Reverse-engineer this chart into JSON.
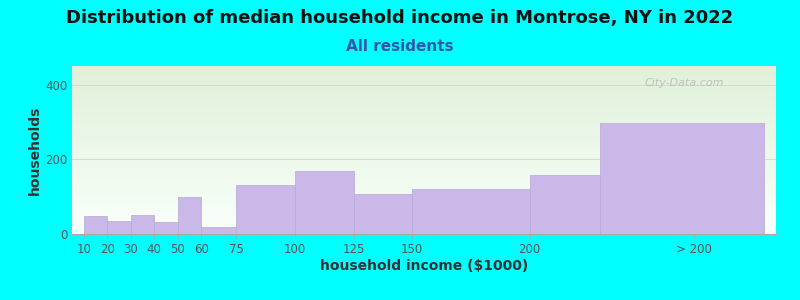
{
  "title": "Distribution of median household income in Montrose, NY in 2022",
  "subtitle": "All residents",
  "xlabel": "household income ($1000)",
  "ylabel": "households",
  "bar_color": "#c9b8e8",
  "bar_edge_color": "#b8a8d8",
  "background_color": "#00ffff",
  "plot_bg_top": "#dff0d8",
  "plot_bg_bottom": "#f8fffa",
  "ylim": [
    0,
    450
  ],
  "yticks": [
    0,
    200,
    400
  ],
  "categories": [
    "10",
    "20",
    "30",
    "40",
    "50",
    "60",
    "75",
    "100",
    "125",
    "150",
    "200",
    "> 200"
  ],
  "values": [
    48,
    35,
    50,
    33,
    100,
    18,
    130,
    168,
    108,
    120,
    158,
    298
  ],
  "x_positions": [
    10,
    20,
    30,
    40,
    50,
    60,
    75,
    100,
    125,
    150,
    200,
    230
  ],
  "bar_widths": [
    10,
    10,
    10,
    10,
    10,
    15,
    25,
    25,
    25,
    50,
    30,
    70
  ],
  "xlim": [
    5,
    305
  ],
  "tick_positions": [
    10,
    20,
    30,
    40,
    50,
    60,
    75,
    100,
    125,
    150,
    200,
    270
  ],
  "title_fontsize": 13,
  "subtitle_fontsize": 11,
  "axis_label_fontsize": 10,
  "watermark": "City-Data.com"
}
